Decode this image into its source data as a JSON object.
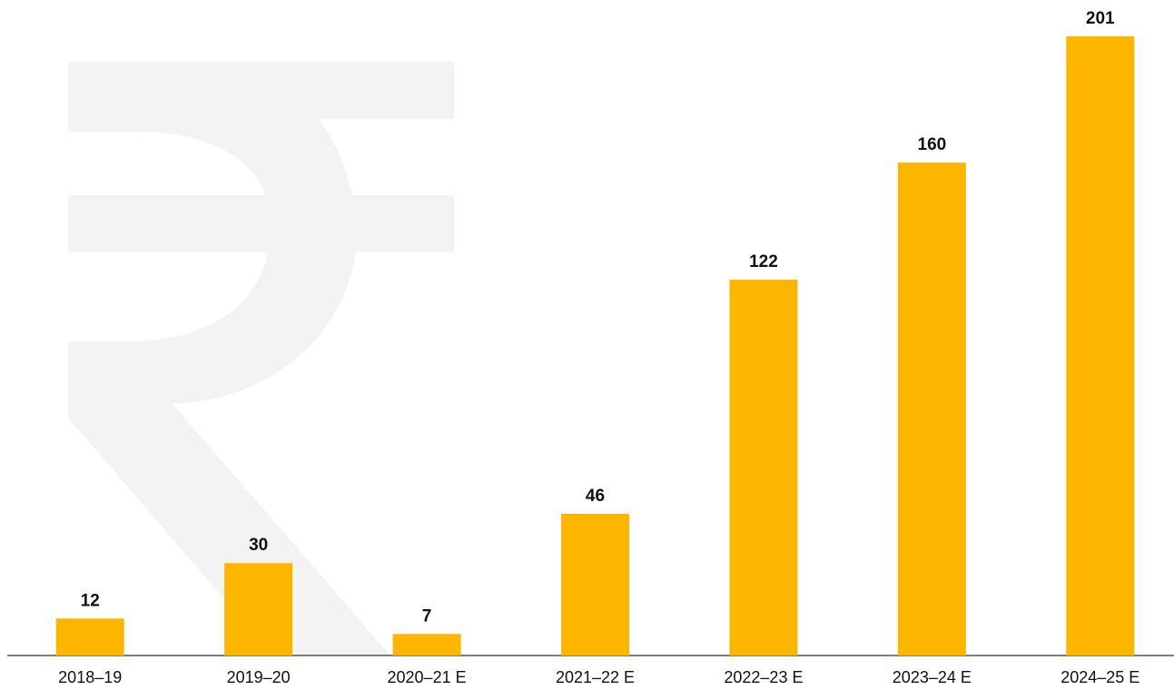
{
  "chart_data": {
    "type": "bar",
    "categories": [
      "2018–19",
      "2019–20",
      "2020–21 E",
      "2021–22 E",
      "2022–23 E",
      "2023–24 E",
      "2024–25 E"
    ],
    "values": [
      12,
      30,
      7,
      46,
      122,
      160,
      201
    ],
    "color": "#fdb600"
  }
}
